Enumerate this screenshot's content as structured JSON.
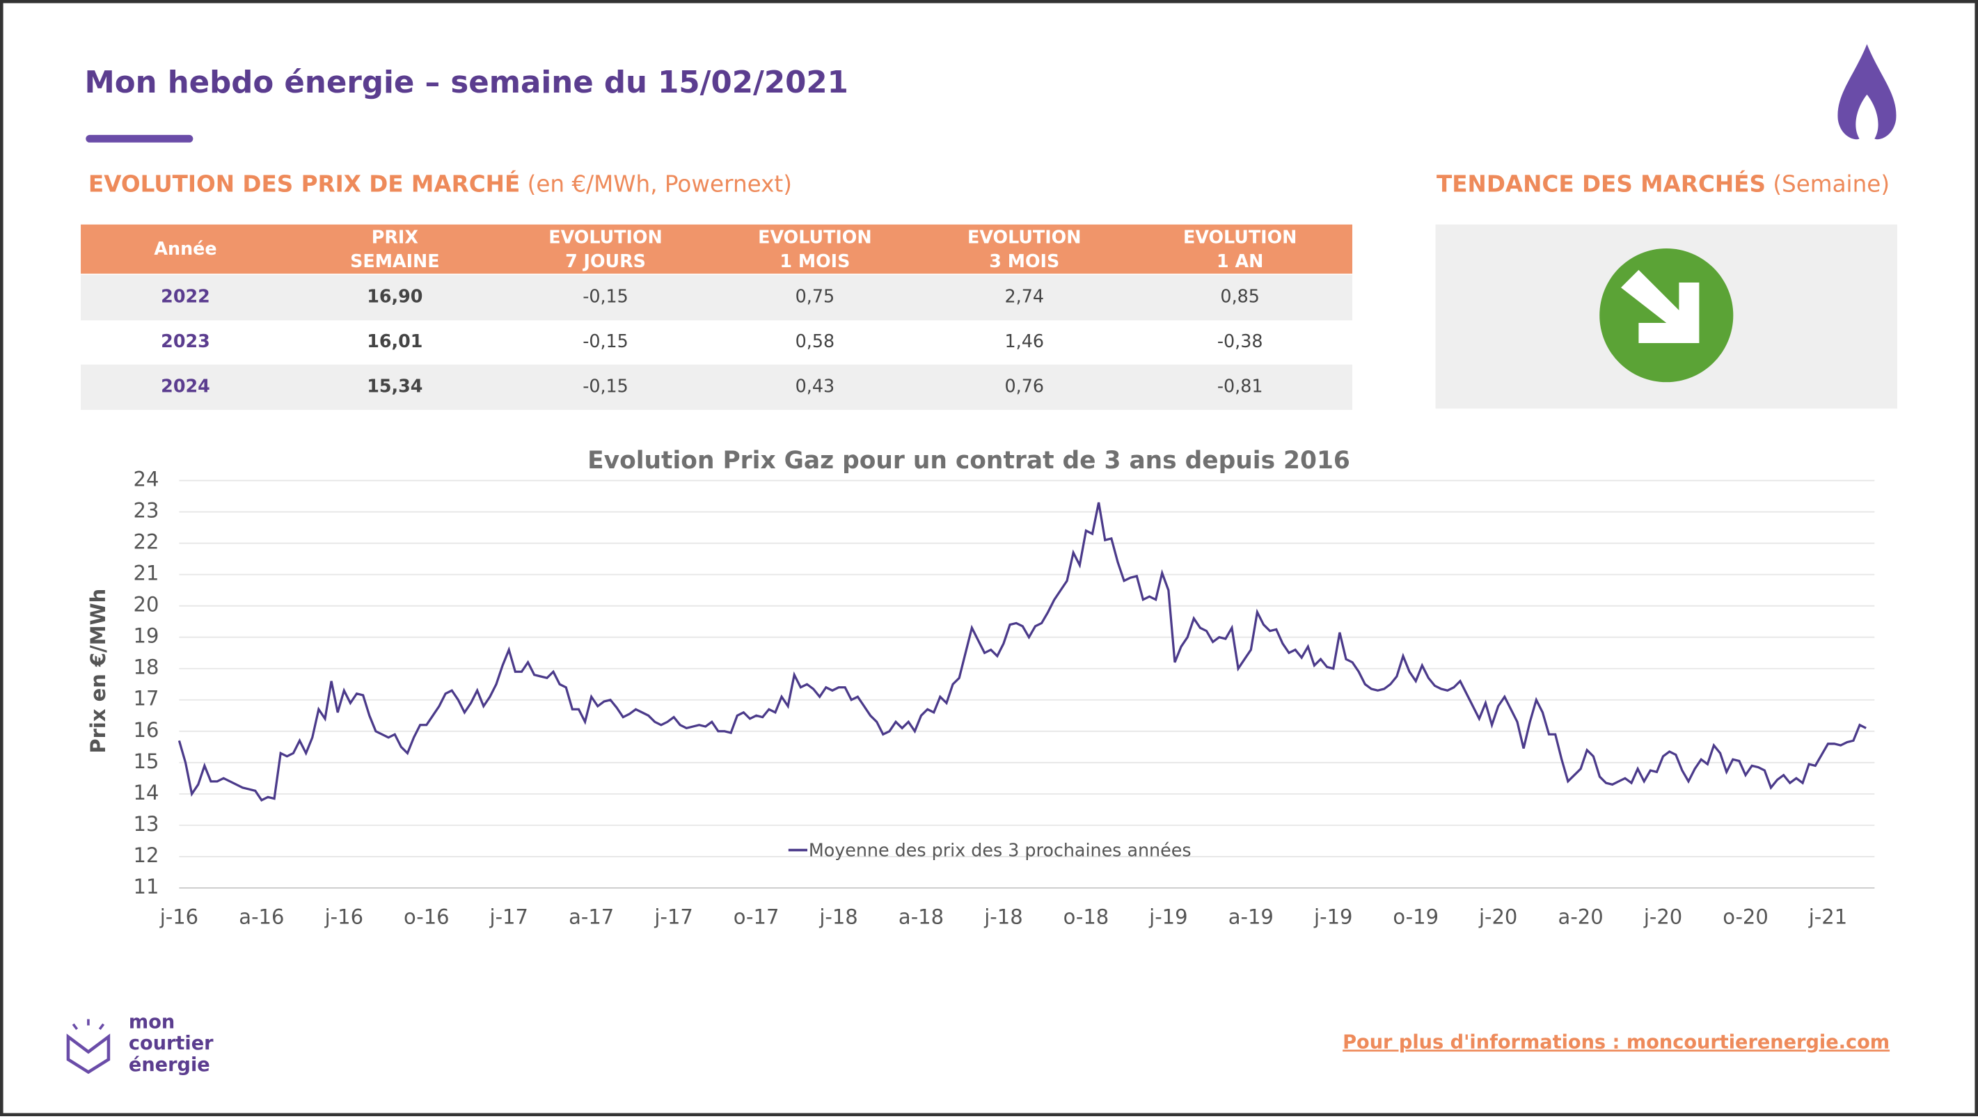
{
  "header": {
    "title": "Mon hebdo énergie – semaine du 15/02/2021"
  },
  "market": {
    "title": "EVOLUTION DES PRIX DE MARCHÉ",
    "subtitle": "(en €/MWh, Powernext)"
  },
  "trend": {
    "title": "TENDANCE DES MARCHÉS",
    "subtitle": "(Semaine)"
  },
  "table": {
    "headers": [
      [
        "Année"
      ],
      [
        "PRIX",
        "SEMAINE"
      ],
      [
        "EVOLUTION",
        "7 JOURS"
      ],
      [
        "EVOLUTION",
        "1 MOIS"
      ],
      [
        "EVOLUTION",
        "3 MOIS"
      ],
      [
        "EVOLUTION",
        "1 AN"
      ]
    ],
    "rows": [
      [
        "2022",
        "16,90",
        "-0,15",
        "0,75",
        "2,74",
        "0,85"
      ],
      [
        "2023",
        "16,01",
        "-0,15",
        "0,58",
        "1,46",
        "-0,38"
      ],
      [
        "2024",
        "15,34",
        "-0,15",
        "0,43",
        "0,76",
        "-0,81"
      ]
    ]
  },
  "chart_data": {
    "type": "line",
    "title": "Evolution Prix Gaz pour un contrat de 3 ans depuis 2016",
    "y_label": "Prix en €/MWh",
    "categories": [
      "j-16",
      null,
      null,
      null,
      null,
      null,
      null,
      null,
      null,
      null,
      null,
      null,
      null,
      "a-16",
      null,
      null,
      null,
      null,
      null,
      null,
      null,
      null,
      null,
      null,
      null,
      null,
      "j-16",
      null,
      null,
      null,
      null,
      null,
      null,
      null,
      null,
      null,
      null,
      null,
      null,
      "o-16",
      null,
      null,
      null,
      null,
      null,
      null,
      null,
      null,
      null,
      null,
      null,
      null,
      "j-17",
      null,
      null,
      null,
      null,
      null,
      null,
      null,
      null,
      null,
      null,
      null,
      null,
      "a-17",
      null,
      null,
      null,
      null,
      null,
      null,
      null,
      null,
      null,
      null,
      null,
      null,
      "j-17",
      null,
      null,
      null,
      null,
      null,
      null,
      null,
      null,
      null,
      null,
      null,
      null,
      "o-17",
      null,
      null,
      null,
      null,
      null,
      null,
      null,
      null,
      null,
      null,
      null,
      null,
      "j-18",
      null,
      null,
      null,
      null,
      null,
      null,
      null,
      null,
      null,
      null,
      null,
      null,
      "a-18",
      null,
      null,
      null,
      null,
      null,
      null,
      null,
      null,
      null,
      null,
      null,
      null,
      "j-18",
      null,
      null,
      null,
      null,
      null,
      null,
      null,
      null,
      null,
      null,
      null,
      null,
      "o-18",
      null,
      null,
      null,
      null,
      null,
      null,
      null,
      null,
      null,
      null,
      null,
      null,
      "j-19",
      null,
      null,
      null,
      null,
      null,
      null,
      null,
      null,
      null,
      null,
      null,
      null,
      "a-19",
      null,
      null,
      null,
      null,
      null,
      null,
      null,
      null,
      null,
      null,
      null,
      null,
      "j-19",
      null,
      null,
      null,
      null,
      null,
      null,
      null,
      null,
      null,
      null,
      null,
      null,
      "o-19",
      null,
      null,
      null,
      null,
      null,
      null,
      null,
      null,
      null,
      null,
      null,
      null,
      "j-20",
      null,
      null,
      null,
      null,
      null,
      null,
      null,
      null,
      null,
      null,
      null,
      null,
      "a-20",
      null,
      null,
      null,
      null,
      null,
      null,
      null,
      null,
      null,
      null,
      null,
      null,
      "j-20",
      null,
      null,
      null,
      null,
      null,
      null,
      null,
      null,
      null,
      null,
      null,
      null,
      "o-20",
      null,
      null,
      null,
      null,
      null,
      null,
      null,
      null,
      null,
      null,
      null,
      null,
      "j-21",
      null,
      null,
      null,
      null,
      null,
      null
    ],
    "series": [
      {
        "name": "Moyenne des prix des 3 prochaines années",
        "color": "#4b3a8a",
        "values": [
          15.7,
          15.0,
          14.0,
          14.3,
          14.9,
          14.4,
          14.4,
          14.5,
          14.4,
          14.3,
          14.2,
          14.15,
          14.1,
          13.8,
          13.9,
          13.85,
          15.3,
          15.2,
          15.3,
          15.7,
          15.3,
          15.8,
          16.7,
          16.4,
          17.6,
          16.6,
          17.3,
          16.9,
          17.2,
          17.15,
          16.5,
          16.0,
          15.9,
          15.8,
          15.9,
          15.5,
          15.3,
          15.8,
          16.2,
          16.2,
          16.5,
          16.8,
          17.2,
          17.3,
          17.0,
          16.6,
          16.9,
          17.3,
          16.8,
          17.1,
          17.5,
          18.1,
          18.6,
          17.9,
          17.9,
          18.2,
          17.8,
          17.75,
          17.7,
          17.9,
          17.5,
          17.4,
          16.7,
          16.7,
          16.3,
          17.1,
          16.8,
          16.95,
          17.0,
          16.75,
          16.45,
          16.55,
          16.7,
          16.6,
          16.5,
          16.3,
          16.2,
          16.3,
          16.45,
          16.2,
          16.1,
          16.15,
          16.2,
          16.15,
          16.3,
          16.0,
          16.0,
          15.95,
          16.5,
          16.6,
          16.4,
          16.5,
          16.45,
          16.7,
          16.6,
          17.1,
          16.8,
          17.8,
          17.4,
          17.5,
          17.35,
          17.1,
          17.4,
          17.3,
          17.4,
          17.4,
          17.0,
          17.1,
          16.8,
          16.5,
          16.3,
          15.9,
          16.0,
          16.3,
          16.1,
          16.3,
          16.0,
          16.5,
          16.7,
          16.6,
          17.1,
          16.9,
          17.5,
          17.7,
          18.5,
          19.3,
          18.9,
          18.5,
          18.6,
          18.4,
          18.8,
          19.4,
          19.45,
          19.35,
          19.0,
          19.35,
          19.45,
          19.8,
          20.2,
          20.5,
          20.8,
          21.7,
          21.3,
          22.4,
          22.3,
          23.3,
          22.1,
          22.15,
          21.4,
          20.8,
          20.9,
          20.95,
          20.2,
          20.3,
          20.2,
          21.05,
          20.5,
          18.2,
          18.7,
          19.0,
          19.6,
          19.3,
          19.2,
          18.85,
          19.0,
          18.95,
          19.3,
          18.0,
          18.3,
          18.6,
          19.8,
          19.4,
          19.2,
          19.25,
          18.8,
          18.5,
          18.6,
          18.35,
          18.7,
          18.1,
          18.3,
          18.05,
          18.0,
          19.15,
          18.3,
          18.2,
          17.9,
          17.5,
          17.35,
          17.3,
          17.35,
          17.5,
          17.75,
          18.4,
          17.9,
          17.6,
          18.1,
          17.7,
          17.45,
          17.35,
          17.3,
          17.4,
          17.6,
          17.2,
          16.8,
          16.4,
          16.9,
          16.2,
          16.8,
          17.1,
          16.7,
          16.3,
          15.45,
          16.3,
          17.0,
          16.6,
          15.9,
          15.9,
          15.1,
          14.4,
          14.6,
          14.8,
          15.4,
          15.2,
          14.55,
          14.35,
          14.3,
          14.4,
          14.5,
          14.35,
          14.8,
          14.4,
          14.75,
          14.7,
          15.2,
          15.35,
          15.25,
          14.75,
          14.4,
          14.8,
          15.1,
          14.95,
          15.55,
          15.3,
          14.7,
          15.1,
          15.05,
          14.6,
          14.9,
          14.85,
          14.75,
          14.2,
          14.45,
          14.6,
          14.35,
          14.5,
          14.35,
          14.95,
          14.9,
          15.25,
          15.6,
          15.6,
          15.55,
          15.65,
          15.7,
          16.2,
          16.1
        ]
      }
    ],
    "ylim": [
      11,
      24
    ],
    "yticks": [
      11,
      12,
      13,
      14,
      15,
      16,
      17,
      18,
      19,
      20,
      21,
      22,
      23,
      24
    ],
    "grid": true,
    "legend": "bottom"
  },
  "footer": {
    "logo": [
      "mon",
      "courtier",
      "énergie"
    ],
    "link": "Pour plus d'informations : moncourtierenergie.com"
  }
}
